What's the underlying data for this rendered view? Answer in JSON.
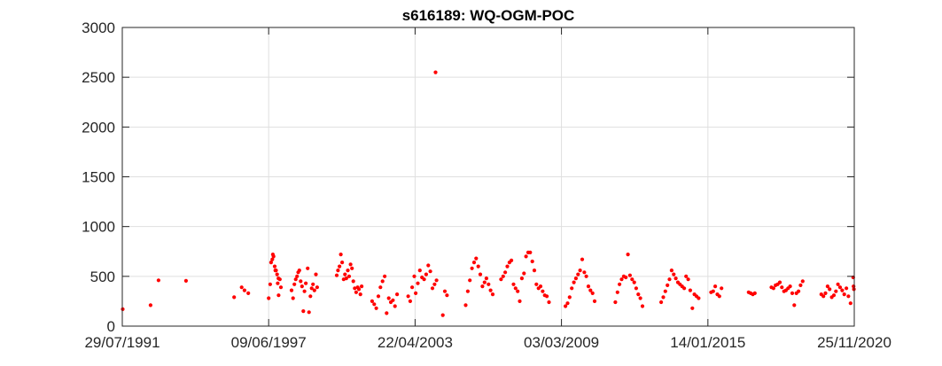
{
  "chart_data": {
    "type": "scatter",
    "title": "s616189: WQ-OGM-POC",
    "xlabel": "",
    "ylabel": "",
    "x_axis": {
      "type": "date",
      "min": "1991-07-29",
      "max": "2020-11-25",
      "ticks": [
        "1991-07-29",
        "1997-06-09",
        "2003-04-22",
        "2009-03-03",
        "2015-01-14",
        "2020-11-25"
      ],
      "tick_labels": [
        "29/07/1991",
        "09/06/1997",
        "22/04/2003",
        "03/03/2009",
        "14/01/2015",
        "25/11/2020"
      ]
    },
    "y_axis": {
      "min": 0,
      "max": 3000,
      "ticks": [
        0,
        500,
        1000,
        1500,
        2000,
        2500,
        3000
      ],
      "tick_labels": [
        "0",
        "500",
        "1000",
        "1500",
        "2000",
        "2500",
        "3000"
      ]
    },
    "grid": true,
    "marker_color": "#ff0000",
    "points": [
      {
        "x": "1991-08-05",
        "y": 170
      },
      {
        "x": "1992-09-15",
        "y": 210
      },
      {
        "x": "1993-01-10",
        "y": 460
      },
      {
        "x": "1994-02-15",
        "y": 455
      },
      {
        "x": "1996-01-20",
        "y": 290
      },
      {
        "x": "1996-05-10",
        "y": 390
      },
      {
        "x": "1996-06-20",
        "y": 360
      },
      {
        "x": "1996-08-15",
        "y": 330
      },
      {
        "x": "1997-06-10",
        "y": 280
      },
      {
        "x": "1997-07-01",
        "y": 420
      },
      {
        "x": "1997-07-15",
        "y": 640
      },
      {
        "x": "1997-08-01",
        "y": 670
      },
      {
        "x": "1997-08-20",
        "y": 700
      },
      {
        "x": "1997-09-05",
        "y": 600
      },
      {
        "x": "1997-09-25",
        "y": 560
      },
      {
        "x": "1997-10-10",
        "y": 520
      },
      {
        "x": "1997-10-20",
        "y": 430
      },
      {
        "x": "1997-11-01",
        "y": 310
      },
      {
        "x": "1997-11-20",
        "y": 470
      },
      {
        "x": "1997-12-05",
        "y": 390
      },
      {
        "x": "1997-08-10",
        "y": 720
      },
      {
        "x": "1997-09-15",
        "y": 560
      },
      {
        "x": "1997-10-30",
        "y": 480
      },
      {
        "x": "1998-05-10",
        "y": 360
      },
      {
        "x": "1998-06-01",
        "y": 280
      },
      {
        "x": "1998-06-20",
        "y": 420
      },
      {
        "x": "1998-07-10",
        "y": 470
      },
      {
        "x": "1998-07-30",
        "y": 500
      },
      {
        "x": "1998-08-15",
        "y": 540
      },
      {
        "x": "1998-09-01",
        "y": 560
      },
      {
        "x": "1998-09-20",
        "y": 450
      },
      {
        "x": "1998-10-10",
        "y": 400
      },
      {
        "x": "1998-10-30",
        "y": 150
      },
      {
        "x": "1998-11-15",
        "y": 350
      },
      {
        "x": "1998-12-05",
        "y": 430
      },
      {
        "x": "1999-01-01",
        "y": 580
      },
      {
        "x": "1999-01-20",
        "y": 140
      },
      {
        "x": "1999-02-10",
        "y": 300
      },
      {
        "x": "1999-03-01",
        "y": 380
      },
      {
        "x": "1999-03-20",
        "y": 420
      },
      {
        "x": "1999-04-10",
        "y": 360
      },
      {
        "x": "1999-05-01",
        "y": 520
      },
      {
        "x": "1999-05-20",
        "y": 390
      },
      {
        "x": "2000-03-01",
        "y": 510
      },
      {
        "x": "2000-03-20",
        "y": 560
      },
      {
        "x": "2000-04-10",
        "y": 600
      },
      {
        "x": "2000-04-30",
        "y": 720
      },
      {
        "x": "2000-05-20",
        "y": 640
      },
      {
        "x": "2000-06-10",
        "y": 470
      },
      {
        "x": "2000-06-30",
        "y": 520
      },
      {
        "x": "2000-07-20",
        "y": 480
      },
      {
        "x": "2000-08-10",
        "y": 560
      },
      {
        "x": "2000-08-30",
        "y": 500
      },
      {
        "x": "2000-09-20",
        "y": 620
      },
      {
        "x": "2000-10-10",
        "y": 580
      },
      {
        "x": "2000-10-30",
        "y": 450
      },
      {
        "x": "2000-11-20",
        "y": 380
      },
      {
        "x": "2000-12-10",
        "y": 340
      },
      {
        "x": "2001-01-01",
        "y": 390
      },
      {
        "x": "2001-01-20",
        "y": 370
      },
      {
        "x": "2001-02-10",
        "y": 320
      },
      {
        "x": "2001-03-01",
        "y": 400
      },
      {
        "x": "2001-08-01",
        "y": 250
      },
      {
        "x": "2001-09-01",
        "y": 220
      },
      {
        "x": "2001-10-01",
        "y": 180
      },
      {
        "x": "2001-11-01",
        "y": 300
      },
      {
        "x": "2001-12-01",
        "y": 390
      },
      {
        "x": "2002-01-01",
        "y": 450
      },
      {
        "x": "2002-02-01",
        "y": 500
      },
      {
        "x": "2002-03-01",
        "y": 130
      },
      {
        "x": "2002-04-01",
        "y": 280
      },
      {
        "x": "2002-05-01",
        "y": 240
      },
      {
        "x": "2002-06-01",
        "y": 260
      },
      {
        "x": "2002-07-01",
        "y": 200
      },
      {
        "x": "2002-08-01",
        "y": 320
      },
      {
        "x": "2003-05-01",
        "y": 330
      },
      {
        "x": "2003-06-01",
        "y": 430
      },
      {
        "x": "2003-07-01",
        "y": 560
      },
      {
        "x": "2003-08-01",
        "y": 490
      },
      {
        "x": "2003-09-01",
        "y": 470
      },
      {
        "x": "2003-10-01",
        "y": 520
      },
      {
        "x": "2003-11-01",
        "y": 610
      },
      {
        "x": "2003-12-01",
        "y": 550
      },
      {
        "x": "2004-01-01",
        "y": 380
      },
      {
        "x": "2004-02-01",
        "y": 420
      },
      {
        "x": "2004-03-01",
        "y": 460
      },
      {
        "x": "2004-02-15",
        "y": 2550
      },
      {
        "x": "2003-01-10",
        "y": 300
      },
      {
        "x": "2003-02-10",
        "y": 250
      },
      {
        "x": "2003-03-10",
        "y": 390
      },
      {
        "x": "2003-04-10",
        "y": 500
      },
      {
        "x": "2004-06-01",
        "y": 110
      },
      {
        "x": "2004-07-01",
        "y": 350
      },
      {
        "x": "2004-08-01",
        "y": 310
      },
      {
        "x": "2005-05-01",
        "y": 210
      },
      {
        "x": "2005-06-01",
        "y": 350
      },
      {
        "x": "2005-07-01",
        "y": 460
      },
      {
        "x": "2005-08-01",
        "y": 580
      },
      {
        "x": "2005-09-01",
        "y": 640
      },
      {
        "x": "2005-10-01",
        "y": 680
      },
      {
        "x": "2005-11-01",
        "y": 600
      },
      {
        "x": "2005-12-01",
        "y": 520
      },
      {
        "x": "2006-01-01",
        "y": 400
      },
      {
        "x": "2006-02-01",
        "y": 440
      },
      {
        "x": "2006-03-01",
        "y": 480
      },
      {
        "x": "2006-04-01",
        "y": 420
      },
      {
        "x": "2006-05-01",
        "y": 360
      },
      {
        "x": "2006-06-01",
        "y": 320
      },
      {
        "x": "2006-10-01",
        "y": 470
      },
      {
        "x": "2006-11-01",
        "y": 500
      },
      {
        "x": "2006-12-01",
        "y": 540
      },
      {
        "x": "2007-01-01",
        "y": 600
      },
      {
        "x": "2007-02-01",
        "y": 640
      },
      {
        "x": "2007-03-01",
        "y": 660
      },
      {
        "x": "2007-04-01",
        "y": 420
      },
      {
        "x": "2007-05-01",
        "y": 380
      },
      {
        "x": "2007-06-01",
        "y": 350
      },
      {
        "x": "2007-07-01",
        "y": 250
      },
      {
        "x": "2007-08-01",
        "y": 480
      },
      {
        "x": "2007-09-01",
        "y": 530
      },
      {
        "x": "2007-10-01",
        "y": 700
      },
      {
        "x": "2007-11-01",
        "y": 740
      },
      {
        "x": "2007-12-01",
        "y": 740
      },
      {
        "x": "2008-01-01",
        "y": 650
      },
      {
        "x": "2008-02-01",
        "y": 560
      },
      {
        "x": "2008-03-01",
        "y": 420
      },
      {
        "x": "2008-04-01",
        "y": 380
      },
      {
        "x": "2008-05-01",
        "y": 400
      },
      {
        "x": "2008-06-01",
        "y": 350
      },
      {
        "x": "2008-07-01",
        "y": 310
      },
      {
        "x": "2008-08-01",
        "y": 300
      },
      {
        "x": "2008-09-01",
        "y": 240
      },
      {
        "x": "2009-05-01",
        "y": 200
      },
      {
        "x": "2009-06-01",
        "y": 230
      },
      {
        "x": "2009-07-01",
        "y": 290
      },
      {
        "x": "2009-08-01",
        "y": 380
      },
      {
        "x": "2009-09-01",
        "y": 440
      },
      {
        "x": "2009-10-01",
        "y": 480
      },
      {
        "x": "2009-11-01",
        "y": 520
      },
      {
        "x": "2009-12-01",
        "y": 560
      },
      {
        "x": "2010-01-01",
        "y": 670
      },
      {
        "x": "2010-02-01",
        "y": 540
      },
      {
        "x": "2010-03-01",
        "y": 500
      },
      {
        "x": "2010-04-01",
        "y": 400
      },
      {
        "x": "2010-05-01",
        "y": 360
      },
      {
        "x": "2010-06-01",
        "y": 330
      },
      {
        "x": "2010-07-01",
        "y": 250
      },
      {
        "x": "2011-05-01",
        "y": 240
      },
      {
        "x": "2011-06-01",
        "y": 340
      },
      {
        "x": "2011-07-01",
        "y": 420
      },
      {
        "x": "2011-08-01",
        "y": 470
      },
      {
        "x": "2011-09-01",
        "y": 500
      },
      {
        "x": "2011-10-01",
        "y": 490
      },
      {
        "x": "2011-11-01",
        "y": 720
      },
      {
        "x": "2011-12-01",
        "y": 510
      },
      {
        "x": "2012-01-01",
        "y": 470
      },
      {
        "x": "2012-02-01",
        "y": 440
      },
      {
        "x": "2012-03-01",
        "y": 380
      },
      {
        "x": "2012-04-01",
        "y": 320
      },
      {
        "x": "2012-05-01",
        "y": 280
      },
      {
        "x": "2012-06-01",
        "y": 200
      },
      {
        "x": "2013-03-01",
        "y": 240
      },
      {
        "x": "2013-04-01",
        "y": 290
      },
      {
        "x": "2013-05-01",
        "y": 350
      },
      {
        "x": "2013-06-01",
        "y": 410
      },
      {
        "x": "2013-07-01",
        "y": 470
      },
      {
        "x": "2013-08-01",
        "y": 560
      },
      {
        "x": "2013-09-01",
        "y": 520
      },
      {
        "x": "2013-10-01",
        "y": 480
      },
      {
        "x": "2013-11-01",
        "y": 440
      },
      {
        "x": "2013-12-01",
        "y": 420
      },
      {
        "x": "2014-01-01",
        "y": 400
      },
      {
        "x": "2014-02-01",
        "y": 380
      },
      {
        "x": "2014-03-01",
        "y": 500
      },
      {
        "x": "2014-04-01",
        "y": 470
      },
      {
        "x": "2014-05-01",
        "y": 360
      },
      {
        "x": "2014-06-01",
        "y": 180
      },
      {
        "x": "2014-07-01",
        "y": 320
      },
      {
        "x": "2014-08-01",
        "y": 300
      },
      {
        "x": "2014-09-01",
        "y": 280
      },
      {
        "x": "2015-03-01",
        "y": 340
      },
      {
        "x": "2015-04-01",
        "y": 350
      },
      {
        "x": "2015-05-01",
        "y": 400
      },
      {
        "x": "2015-06-01",
        "y": 320
      },
      {
        "x": "2015-07-01",
        "y": 300
      },
      {
        "x": "2015-08-01",
        "y": 380
      },
      {
        "x": "2016-09-01",
        "y": 340
      },
      {
        "x": "2016-10-01",
        "y": 330
      },
      {
        "x": "2016-11-01",
        "y": 320
      },
      {
        "x": "2016-12-01",
        "y": 330
      },
      {
        "x": "2017-08-01",
        "y": 390
      },
      {
        "x": "2017-09-01",
        "y": 380
      },
      {
        "x": "2017-10-01",
        "y": 410
      },
      {
        "x": "2017-11-01",
        "y": 420
      },
      {
        "x": "2017-12-01",
        "y": 440
      },
      {
        "x": "2018-01-01",
        "y": 390
      },
      {
        "x": "2018-02-01",
        "y": 350
      },
      {
        "x": "2018-03-01",
        "y": 360
      },
      {
        "x": "2018-04-01",
        "y": 380
      },
      {
        "x": "2018-05-01",
        "y": 400
      },
      {
        "x": "2018-06-01",
        "y": 330
      },
      {
        "x": "2018-07-01",
        "y": 210
      },
      {
        "x": "2018-08-01",
        "y": 330
      },
      {
        "x": "2018-09-01",
        "y": 350
      },
      {
        "x": "2018-10-01",
        "y": 410
      },
      {
        "x": "2018-11-01",
        "y": 450
      },
      {
        "x": "2019-08-01",
        "y": 320
      },
      {
        "x": "2019-09-01",
        "y": 300
      },
      {
        "x": "2019-10-01",
        "y": 330
      },
      {
        "x": "2019-11-01",
        "y": 400
      },
      {
        "x": "2019-12-01",
        "y": 370
      },
      {
        "x": "2020-01-01",
        "y": 290
      },
      {
        "x": "2020-02-01",
        "y": 310
      },
      {
        "x": "2020-03-01",
        "y": 350
      },
      {
        "x": "2020-04-01",
        "y": 420
      },
      {
        "x": "2020-05-01",
        "y": 390
      },
      {
        "x": "2020-06-01",
        "y": 360
      },
      {
        "x": "2020-07-01",
        "y": 320
      },
      {
        "x": "2020-08-01",
        "y": 380
      },
      {
        "x": "2020-09-01",
        "y": 300
      },
      {
        "x": "2020-10-01",
        "y": 230
      },
      {
        "x": "2020-11-10",
        "y": 490
      },
      {
        "x": "2020-11-15",
        "y": 400
      },
      {
        "x": "2020-11-20",
        "y": 370
      }
    ]
  }
}
